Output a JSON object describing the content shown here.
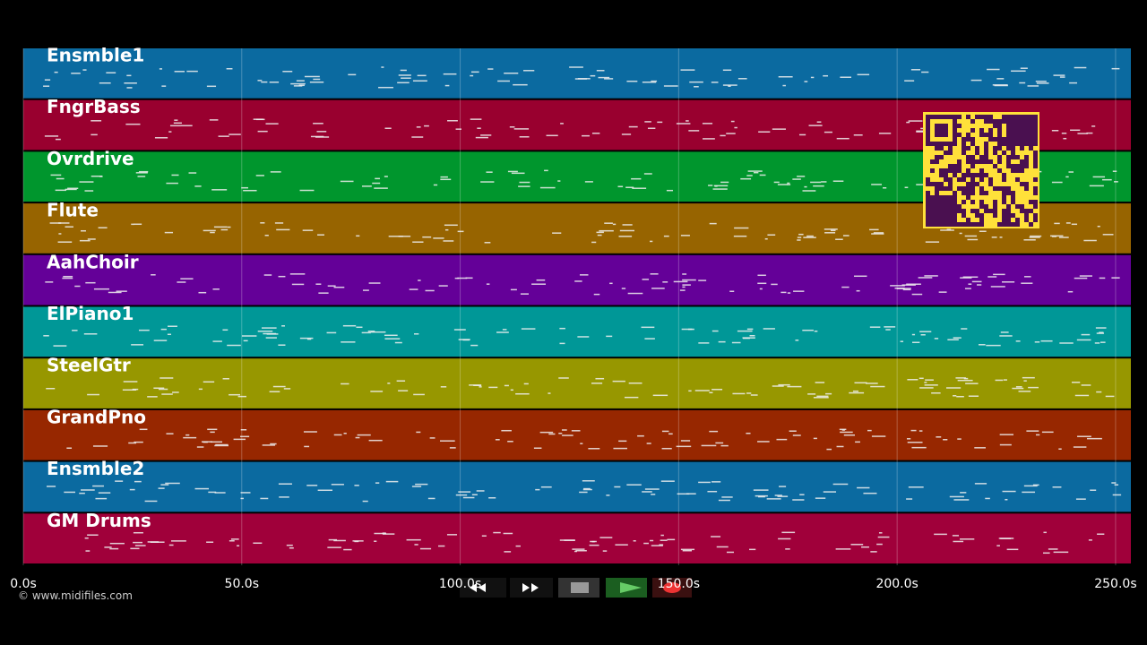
{
  "tracks": [
    {
      "name": "Ensmble1",
      "color": "#0b6aa0"
    },
    {
      "name": "FngrBass",
      "color": "#99002f"
    },
    {
      "name": "Ovrdrive",
      "color": "#00962d"
    },
    {
      "name": "Flute",
      "color": "#976400"
    },
    {
      "name": "AahChoir",
      "color": "#640098"
    },
    {
      "name": "ElPiano1",
      "color": "#009797"
    },
    {
      "name": "SteelGtr",
      "color": "#979700"
    },
    {
      "name": "GrandPno",
      "color": "#972700"
    },
    {
      "name": "Ensmble2",
      "color": "#0b6aa0"
    },
    {
      "name": "GM Drums",
      "color": "#a0003a"
    }
  ],
  "timeline": {
    "xlim": [
      0,
      253.5
    ],
    "ticks": [
      {
        "value": 0,
        "label": "0.0s"
      },
      {
        "value": 50,
        "label": "50.0s"
      },
      {
        "value": 100,
        "label": "100.0s"
      },
      {
        "value": 150,
        "label": "150.0s"
      },
      {
        "value": 200,
        "label": "200.0s"
      },
      {
        "value": 250,
        "label": "250.0s"
      }
    ]
  },
  "footer": "© www.midifiles.com"
}
